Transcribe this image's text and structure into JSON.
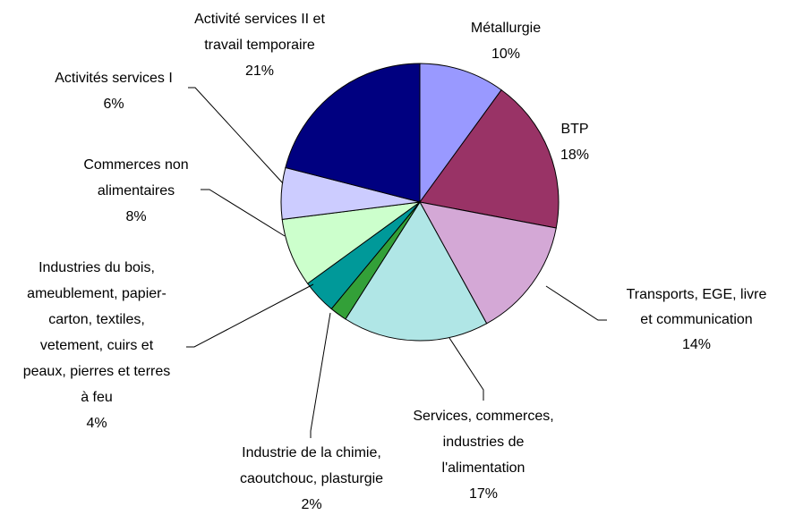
{
  "chart_data": {
    "type": "pie",
    "categories": [
      [
        "Métallurgie"
      ],
      [
        "BTP"
      ],
      [
        "Transports, EGE, livre",
        "et communication"
      ],
      [
        "Services, commerces,",
        "industries de",
        "l'alimentation"
      ],
      [
        "Industrie de la chimie,",
        "caoutchouc, plasturgie"
      ],
      [
        "Industries du bois,",
        "ameublement, papier-",
        "carton, textiles,",
        "vetement, cuirs et",
        "peaux, pierres et terres",
        "à feu"
      ],
      [
        "Commerces non",
        "alimentaires"
      ],
      [
        "Activités services I"
      ],
      [
        "Activité services II et",
        "travail temporaire"
      ]
    ],
    "values": [
      10,
      18,
      14,
      17,
      2,
      4,
      8,
      6,
      21
    ],
    "value_labels": [
      "10%",
      "18%",
      "14%",
      "17%",
      "2%",
      "4%",
      "8%",
      "6%",
      "21%"
    ],
    "colors": [
      "#9999ff",
      "#993366",
      "#d4a8d6",
      "#b0e6e6",
      "#33a038",
      "#009999",
      "#ccffcc",
      "#ccccff",
      "#000080"
    ]
  }
}
